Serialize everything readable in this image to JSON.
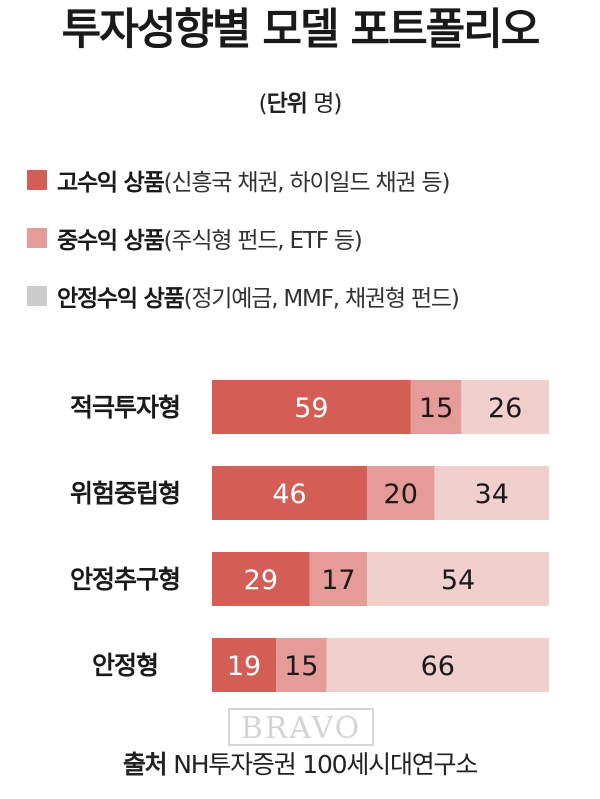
{
  "title": "투자성향별 모델 포트폴리오",
  "unit": {
    "open": "(",
    "label": "단위",
    "value": "명",
    "close": ")"
  },
  "legend": [
    {
      "label": "고수익 상품",
      "detail": "(신흥국 채권, 하이일드 채권 등)",
      "color": "#d45d55"
    },
    {
      "label": "중수익 상품",
      "detail": "(주식형 펀드, ETF 등)",
      "color": "#e59c98"
    },
    {
      "label": "안정수익 상품",
      "detail": "(정기예금, MMF, 채권형 펀드)",
      "color": "#cccccc"
    }
  ],
  "chart_data": {
    "type": "bar",
    "orientation": "horizontal",
    "stacked": true,
    "categories": [
      "적극투자형",
      "위험중립형",
      "안정추구형",
      "안정형"
    ],
    "series": [
      {
        "name": "고수익 상품",
        "values": [
          59,
          46,
          29,
          19
        ],
        "color": "#d45d55"
      },
      {
        "name": "중수익 상품",
        "values": [
          15,
          20,
          17,
          15
        ],
        "color": "#e59c98"
      },
      {
        "name": "안정수익 상품",
        "values": [
          26,
          34,
          54,
          66
        ],
        "color": "#f1cfcd"
      }
    ],
    "xlim": [
      0,
      100
    ],
    "grid": false,
    "data_labels": true
  },
  "source": {
    "label": "출처",
    "text": "NH투자증권 100세시대연구소"
  },
  "watermark": "BRAVO"
}
